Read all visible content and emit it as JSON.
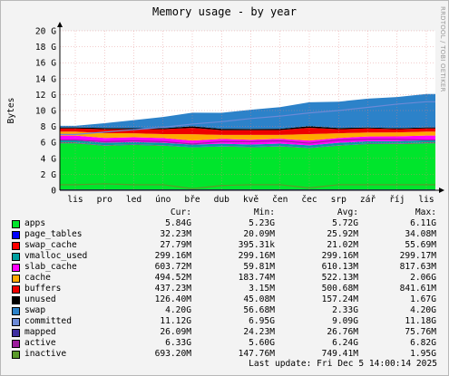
{
  "watermark": "RRDTOOL / TOBI OETIKER",
  "legend_headers": {
    "cur": "Cur:",
    "min": "Min:",
    "avg": "Avg:",
    "max": "Max:"
  },
  "last_update": "Last update:  Fri Dec  5 14:00:14 2025",
  "chart_data": {
    "type": "area",
    "title": "Memory usage - by year",
    "ylabel": "Bytes",
    "ylim": [
      0,
      20
    ],
    "yticks": [
      "0",
      "2 G",
      "4 G",
      "6 G",
      "8 G",
      "10 G",
      "12 G",
      "14 G",
      "16 G",
      "18 G",
      "20 G"
    ],
    "categories": [
      "lis",
      "pro",
      "led",
      "úno",
      "bře",
      "dub",
      "kvě",
      "čen",
      "čec",
      "srp",
      "zář",
      "říj",
      "lis"
    ],
    "grid": true,
    "series": [
      {
        "name": "apps",
        "color": "#00e52c",
        "cur": "5.84G",
        "min": "5.23G",
        "avg": "5.72G",
        "max": "6.11G",
        "values": [
          5.9,
          5.6,
          5.7,
          5.6,
          5.4,
          5.5,
          5.4,
          5.5,
          5.3,
          5.6,
          5.8,
          5.8,
          5.9
        ]
      },
      {
        "name": "page_tables",
        "color": "#0000ff",
        "cur": "32.23M",
        "min": "20.09M",
        "avg": "25.92M",
        "max": "34.08M",
        "values": [
          0.03,
          0.03,
          0.03,
          0.03,
          0.02,
          0.02,
          0.02,
          0.03,
          0.03,
          0.03,
          0.03,
          0.03,
          0.03
        ]
      },
      {
        "name": "swap_cache",
        "color": "#ff0000",
        "cur": "27.79M",
        "min": "395.31k",
        "avg": "21.02M",
        "max": "55.69M",
        "values": [
          0.03,
          0.03,
          0.02,
          0.02,
          0.01,
          0.02,
          0.02,
          0.02,
          0.01,
          0.02,
          0.02,
          0.03,
          0.03
        ]
      },
      {
        "name": "vmalloc_used",
        "color": "#00a0a0",
        "cur": "299.16M",
        "min": "299.16M",
        "avg": "299.16M",
        "max": "299.17M",
        "values": [
          0.3,
          0.3,
          0.3,
          0.3,
          0.3,
          0.3,
          0.3,
          0.3,
          0.3,
          0.3,
          0.3,
          0.3,
          0.3
        ]
      },
      {
        "name": "slab_cache",
        "color": "#ff00ff",
        "cur": "603.72M",
        "min": "59.81M",
        "avg": "610.13M",
        "max": "817.63M",
        "values": [
          0.6,
          0.6,
          0.6,
          0.6,
          0.5,
          0.6,
          0.6,
          0.6,
          0.6,
          0.6,
          0.6,
          0.6,
          0.6
        ]
      },
      {
        "name": "cache",
        "color": "#ffaa00",
        "cur": "494.52M",
        "min": "183.74M",
        "avg": "522.13M",
        "max": "2.06G",
        "values": [
          0.5,
          0.6,
          0.5,
          0.5,
          0.8,
          0.5,
          0.6,
          0.5,
          0.8,
          0.6,
          0.5,
          0.5,
          0.5
        ]
      },
      {
        "name": "buffers",
        "color": "#ee0000",
        "cur": "437.23M",
        "min": "3.15M",
        "avg": "500.68M",
        "max": "841.61M",
        "values": [
          0.4,
          0.5,
          0.5,
          0.6,
          0.8,
          0.6,
          0.6,
          0.6,
          0.8,
          0.5,
          0.5,
          0.4,
          0.4
        ]
      },
      {
        "name": "unused",
        "color": "#000000",
        "cur": "126.40M",
        "min": "45.08M",
        "avg": "157.24M",
        "max": "1.67G",
        "values": [
          0.12,
          0.15,
          0.14,
          0.14,
          0.2,
          0.18,
          0.16,
          0.17,
          0.2,
          0.16,
          0.14,
          0.13,
          0.12
        ]
      },
      {
        "name": "swap",
        "color": "#2c82c9",
        "cur": "4.20G",
        "min": "56.68M",
        "avg": "2.33G",
        "max": "4.20G",
        "values": [
          0.2,
          0.6,
          1.0,
          1.4,
          1.7,
          2.0,
          2.4,
          2.7,
          3.0,
          3.3,
          3.6,
          3.9,
          4.2
        ]
      },
      {
        "name": "committed",
        "color": "#6c8ad6",
        "cur": "11.12G",
        "min": "6.95G",
        "avg": "9.09G",
        "max": "11.18G",
        "values": [
          7.0,
          7.3,
          7.6,
          7.9,
          8.3,
          8.6,
          9.0,
          9.3,
          9.7,
          10.0,
          10.4,
          10.8,
          11.1
        ]
      },
      {
        "name": "mapped",
        "color": "#3f2fa0",
        "cur": "26.09M",
        "min": "24.23M",
        "avg": "26.76M",
        "max": "75.76M",
        "values": [
          0.03,
          0.03,
          0.03,
          0.03,
          0.03,
          0.03,
          0.03,
          0.03,
          0.03,
          0.03,
          0.03,
          0.03,
          0.03
        ]
      },
      {
        "name": "active",
        "color": "#9c1d9c",
        "cur": "6.33G",
        "min": "5.60G",
        "avg": "6.24G",
        "max": "6.82G",
        "values": [
          6.3,
          6.1,
          6.2,
          6.1,
          5.8,
          6.1,
          6.1,
          6.2,
          5.9,
          6.3,
          6.4,
          6.4,
          6.3
        ]
      },
      {
        "name": "inactive",
        "color": "#5b9b2b",
        "cur": "693.20M",
        "min": "147.76M",
        "avg": "749.41M",
        "max": "1.95G",
        "values": [
          0.7,
          0.8,
          0.7,
          0.7,
          0.2,
          0.6,
          0.7,
          0.7,
          0.3,
          0.7,
          0.7,
          0.7,
          0.7
        ]
      }
    ]
  }
}
